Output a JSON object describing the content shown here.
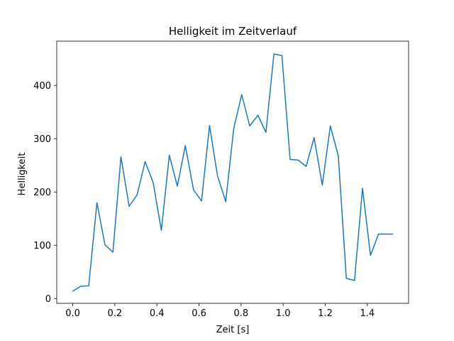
{
  "chart_data": {
    "type": "line",
    "title": "Helligkeit im Zeitverlauf",
    "xlabel": "Zeit [s]",
    "ylabel": "Helligkeit",
    "xlim": [
      -0.076,
      1.596
    ],
    "ylim": [
      -9,
      483
    ],
    "xticks": [
      0.0,
      0.2,
      0.4,
      0.6,
      0.8,
      1.0,
      1.2,
      1.4
    ],
    "xtick_labels": [
      "0.0",
      "0.2",
      "0.4",
      "0.6",
      "0.8",
      "1.0",
      "1.2",
      "1.4"
    ],
    "yticks": [
      0,
      100,
      200,
      300,
      400
    ],
    "ytick_labels": [
      "0",
      "100",
      "200",
      "300",
      "400"
    ],
    "grid": false,
    "color": "#1f77b4",
    "series": [
      {
        "x": [
          0.0,
          0.038,
          0.076,
          0.115,
          0.153,
          0.191,
          0.229,
          0.268,
          0.306,
          0.344,
          0.382,
          0.421,
          0.459,
          0.497,
          0.535,
          0.574,
          0.612,
          0.65,
          0.688,
          0.727,
          0.765,
          0.803,
          0.841,
          0.88,
          0.918,
          0.956,
          0.994,
          1.033,
          1.071,
          1.109,
          1.147,
          1.186,
          1.224,
          1.262,
          1.3,
          1.339,
          1.377,
          1.415,
          1.453,
          1.492,
          1.52
        ],
        "values": [
          14,
          23,
          24,
          180,
          101,
          87,
          266,
          173,
          195,
          257,
          218,
          128,
          269,
          211,
          287,
          204,
          183,
          325,
          230,
          182,
          319,
          383,
          324,
          344,
          312,
          459,
          456,
          261,
          260,
          248,
          302,
          213,
          324,
          268,
          38,
          34,
          207,
          81,
          121,
          121,
          121
        ]
      }
    ]
  }
}
